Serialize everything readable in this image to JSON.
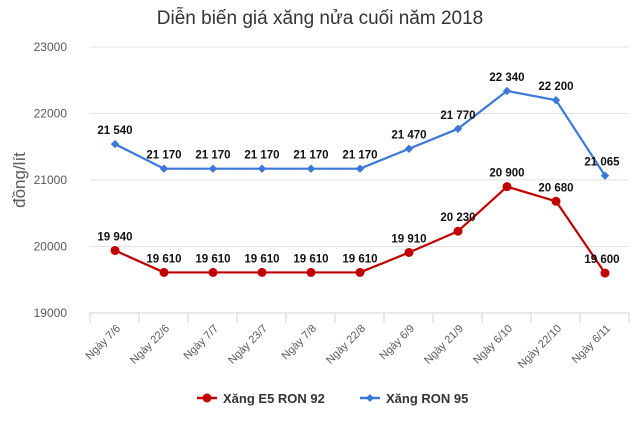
{
  "chart_data": {
    "type": "line",
    "title": "Diễn biến giá xăng nửa cuối năm 2018",
    "xlabel": "",
    "ylabel": "đồng/lít",
    "ylim": [
      19000,
      23000
    ],
    "yticks": [
      19000,
      20000,
      21000,
      22000,
      23000
    ],
    "ytick_labels": [
      "19000",
      "20000",
      "21000",
      "22000",
      "23000"
    ],
    "grid": true,
    "legend_position": "bottom",
    "categories": [
      "Ngày 7/6",
      "Ngày 22/6",
      "Ngày 7/7",
      "Ngày 23/7",
      "Ngày 7/8",
      "Ngày 22/8",
      "Ngày 6/9",
      "Ngày 21/9",
      "Ngày 6/10",
      "Ngày 22/10",
      "Ngày 6/11"
    ],
    "series": [
      {
        "name": "Xăng E5 RON 92",
        "color": "#c00000",
        "marker": "circle",
        "values": [
          19940,
          19610,
          19610,
          19610,
          19610,
          19610,
          19910,
          20230,
          20900,
          20680,
          19600
        ],
        "labels": [
          "19 940",
          "19 610",
          "19 610",
          "19 610",
          "19 610",
          "19 610",
          "19 910",
          "20 230",
          "20 900",
          "20 680",
          "19 600"
        ]
      },
      {
        "name": "Xăng RON 95",
        "color": "#3c78d8",
        "marker": "diamond",
        "values": [
          21540,
          21170,
          21170,
          21170,
          21170,
          21170,
          21470,
          21770,
          22340,
          22200,
          21065
        ],
        "labels": [
          "21 540",
          "21 170",
          "21 170",
          "21 170",
          "21 170",
          "21 170",
          "21 470",
          "21 770",
          "22 340",
          "22 200",
          "21 065"
        ]
      }
    ]
  }
}
